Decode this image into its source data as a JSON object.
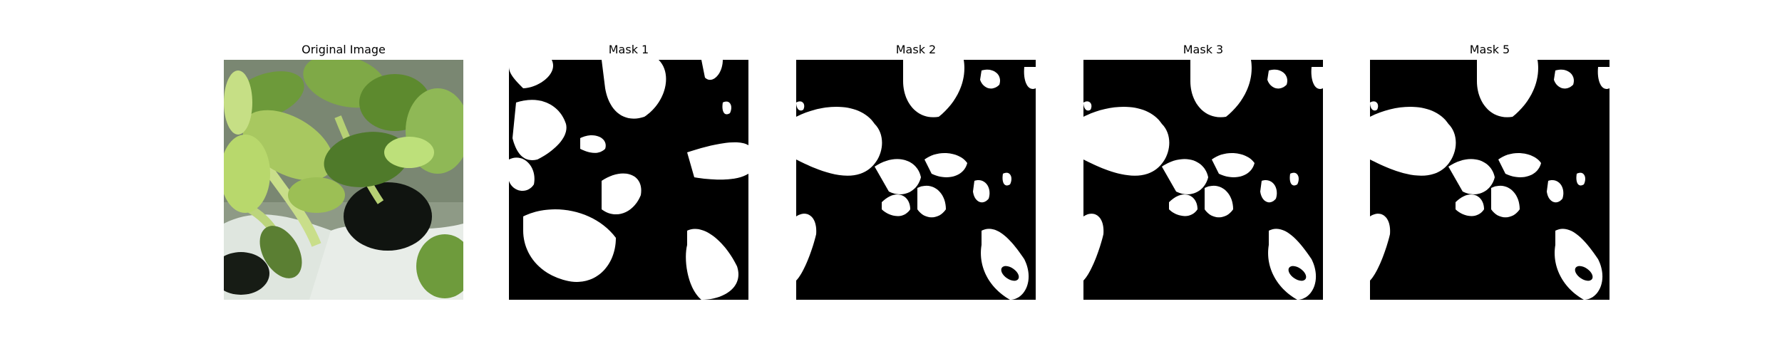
{
  "panels": [
    {
      "title": "Original Image",
      "kind": "photo",
      "subject": "green leafy plant seedlings growing from white planter with dark pot opening"
    },
    {
      "title": "Mask 1",
      "kind": "binary-mask"
    },
    {
      "title": "Mask 2",
      "kind": "binary-mask"
    },
    {
      "title": "Mask 3",
      "kind": "binary-mask"
    },
    {
      "title": "Mask 5",
      "kind": "binary-mask"
    }
  ],
  "colors": {
    "background": "#ffffff",
    "mask_foreground": "#ffffff",
    "mask_background": "#000000",
    "leaf_light": "#a8c860",
    "leaf_dark": "#4f7a2a",
    "planter": "#dfe6df",
    "pot_opening": "#101410"
  }
}
